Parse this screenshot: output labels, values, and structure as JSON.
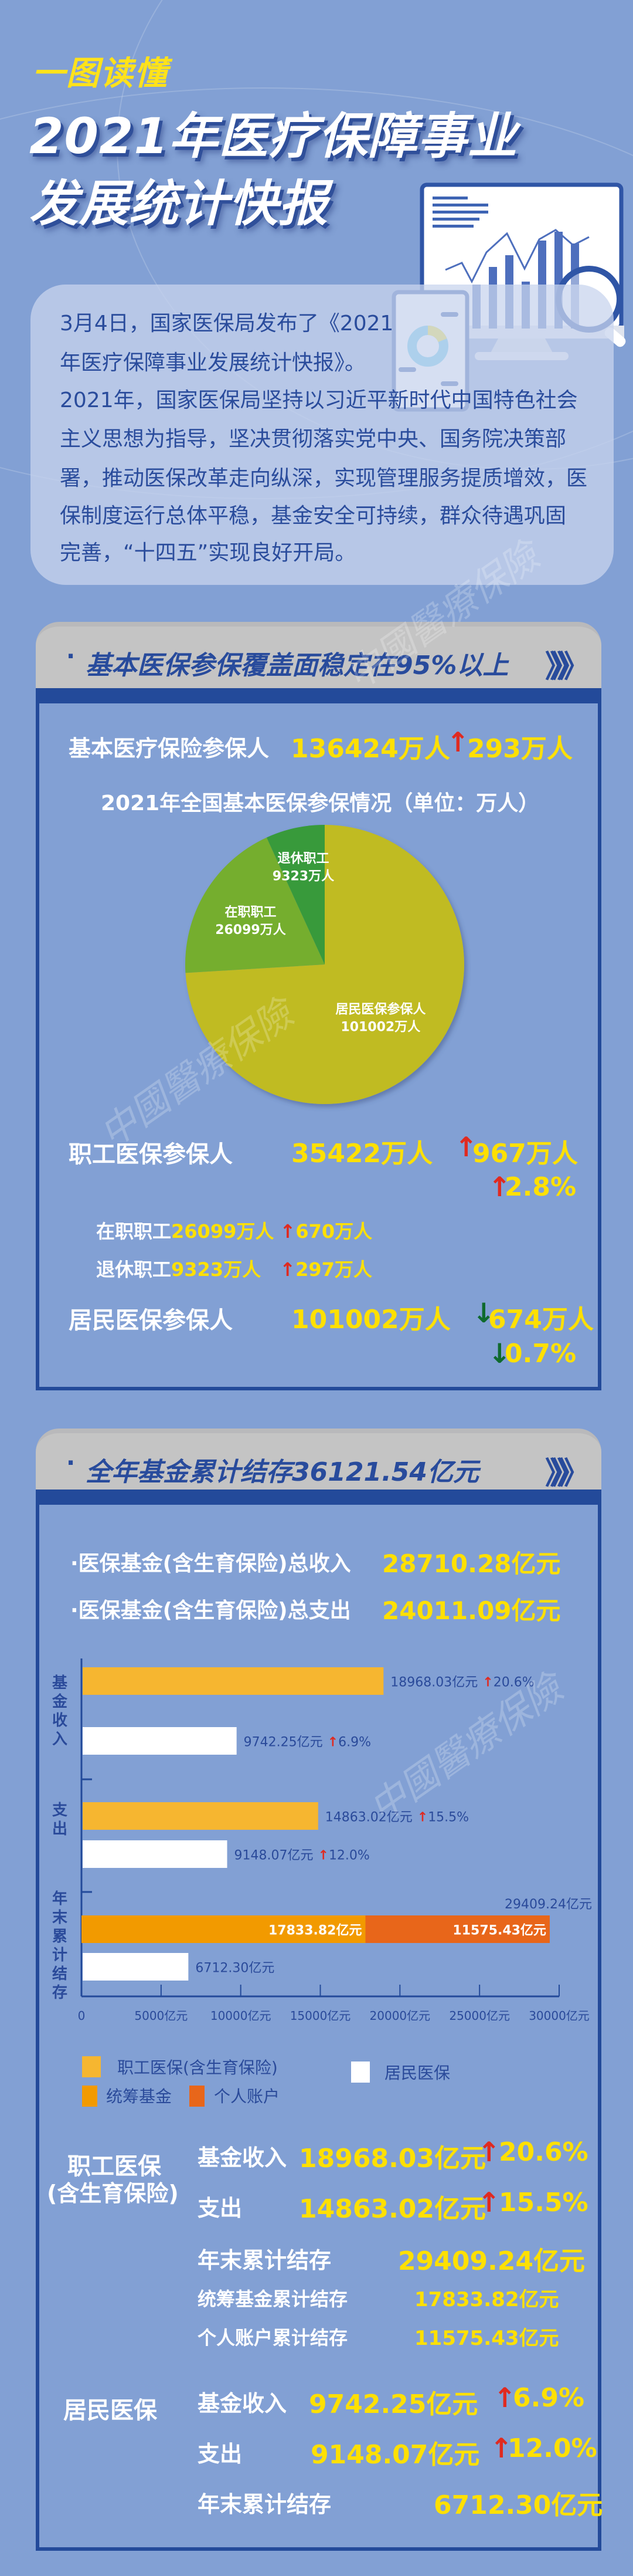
{
  "header": {
    "kicker": "一图读懂",
    "title_line1": "2021年医疗保障事业",
    "title_line2": "发展统计快报"
  },
  "intro": {
    "lines": [
      "3月4日，国家医保局发布了《2021",
      "年医疗保障事业发展统计快报》。",
      "2021年，国家医保局坚持以习近平新时代中国特色社会",
      "主义思想为指导，坚决贯彻落实党中央、国务院决策部",
      "署，推动医保改革走向纵深，实现管理服务提质增效，医",
      "保制度运行总体平稳，基金安全可持续，群众待遇巩固",
      "完善，“十四五”实现良好开局。"
    ]
  },
  "watermark": "中國醫療保險",
  "section1": {
    "title": "基本医保参保覆盖面稳定在95%以上",
    "bullet": "·",
    "chevrons": "》》》",
    "total": {
      "label": "基本医疗保险参保人",
      "value": "136424万人",
      "arrow": "↑",
      "change": "293万人"
    },
    "employee": {
      "label": "职工医保参保人",
      "value": "35422万人",
      "arrow": "↑",
      "change": "967万人",
      "pct_arrow": "↑",
      "pct": "2.8%"
    },
    "active": {
      "label": "在职职工",
      "value": "26099万人",
      "arrow": "↑",
      "change": "670万人"
    },
    "retired": {
      "label": "退休职工",
      "value": "9323万人",
      "arrow": "↑",
      "change": "297万人"
    },
    "resident": {
      "label": "居民医保参保人",
      "value": "101002万人",
      "arrow": "↓",
      "change": "674万人",
      "pct_arrow": "↓",
      "pct": "0.7%"
    }
  },
  "chart_data": [
    {
      "type": "pie",
      "title": "2021年全国基本医保参保情况（单位：万人）",
      "slices": [
        {
          "name": "居民医保参保人",
          "value": 101002,
          "label": "101002万人",
          "color": "#c0bb22"
        },
        {
          "name": "在职职工",
          "value": 26099,
          "label": "26099万人",
          "color": "#74ae2e"
        },
        {
          "name": "退休职工",
          "value": 9323,
          "label": "9323万人",
          "color": "#389a3a"
        }
      ]
    },
    {
      "type": "bar",
      "orientation": "horizontal",
      "categories": [
        "基金收入",
        "支出",
        "年末累计结存"
      ],
      "xlim": [
        0,
        30000
      ],
      "x_ticks": [
        "0",
        "5000亿元",
        "10000亿元",
        "15000亿元",
        "20000亿元",
        "25000亿元",
        "30000亿元"
      ],
      "x_tick_values": [
        0,
        5000,
        10000,
        15000,
        20000,
        25000,
        30000
      ],
      "series": [
        {
          "name": "职工医保(含生育保险)",
          "color": "#f6b630",
          "values": [
            18968.03,
            14863.02,
            29409.24
          ],
          "labels": [
            "18968.03亿元",
            "14863.02亿元",
            "29409.24亿元"
          ],
          "changes": [
            "20.6%",
            "15.5%",
            ""
          ],
          "stack": [
            {
              "name": "统筹基金",
              "value": 17833.82,
              "label": "17833.82亿元",
              "color": "#f29a00"
            },
            {
              "name": "个人账户",
              "value": 11575.43,
              "label": "11575.43亿元",
              "color": "#e8661a"
            }
          ]
        },
        {
          "name": "居民医保",
          "color": "#ffffff",
          "values": [
            9742.25,
            9148.07,
            6712.3
          ],
          "labels": [
            "9742.25亿元",
            "9148.07亿元",
            "6712.30亿元"
          ],
          "changes": [
            "6.9%",
            "12.0%",
            ""
          ]
        }
      ],
      "legend": "bottom",
      "arrow_up": "↑"
    }
  ],
  "section2": {
    "title": "全年基金累计结存36121.54亿元",
    "bullet": "·",
    "chevrons": "》》》",
    "income": {
      "label": "·医保基金(含生育保险)总收入",
      "value": "28710.28亿元"
    },
    "expense": {
      "label": "·医保基金(含生育保险)总支出",
      "value": "24011.09亿元"
    },
    "employee": {
      "label_line1": "职工医保",
      "label_line2": "(含生育保险)",
      "rows": [
        {
          "label": "基金收入",
          "value": "18968.03亿元",
          "arrow": "↑",
          "change": "20.6%"
        },
        {
          "label": "支出",
          "value": "14863.02亿元",
          "arrow": "↑",
          "change": "15.5%"
        },
        {
          "label": "年末累计结存",
          "value": "29409.24亿元"
        },
        {
          "label": "统筹基金累计结存",
          "value": "17833.82亿元"
        },
        {
          "label": "个人账户累计结存",
          "value": "11575.43亿元"
        }
      ]
    },
    "resident": {
      "label": "居民医保",
      "rows": [
        {
          "label": "基金收入",
          "value": "9742.25亿元",
          "arrow": "↑",
          "change": "6.9%"
        },
        {
          "label": "支出",
          "value": "9148.07亿元",
          "arrow": "↑",
          "change": "12.0%"
        },
        {
          "label": "年末累计结存",
          "value": "6712.30亿元"
        }
      ]
    }
  }
}
